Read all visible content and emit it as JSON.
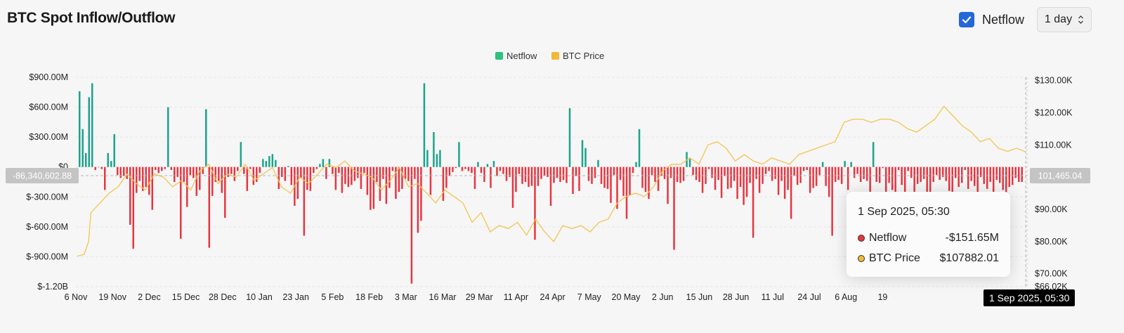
{
  "header": {
    "title": "BTC Spot Inflow/Outflow",
    "netflow_toggle_label": "Netflow",
    "interval": "1 day"
  },
  "colors": {
    "positive": "#1aa38b",
    "negative": "#e8343f",
    "price": "#f4c44e",
    "legend_netflow": "#2ec27e",
    "legend_price": "#f0b93a"
  },
  "icons": {
    "checkbox": "checkmark-icon",
    "select": "chevron-up-down-icon"
  },
  "tooltip": {
    "date": "1 Sep 2025, 05:30",
    "rows": [
      {
        "name": "Netflow",
        "value": "-$151.65M",
        "color": "#e8343f"
      },
      {
        "name": "BTC Price",
        "value": "$107882.01",
        "color": "#f0b93a"
      }
    ]
  },
  "chart_data": {
    "type": "bar",
    "title": "",
    "legend": {
      "position": "top-center",
      "entries": [
        "Netflow",
        "BTC Price"
      ]
    },
    "grid": true,
    "x_ticks": [
      "6 Nov",
      "19 Nov",
      "2 Dec",
      "15 Dec",
      "28 Dec",
      "10 Jan",
      "23 Jan",
      "5 Feb",
      "18 Feb",
      "3 Mar",
      "16 Mar",
      "29 Mar",
      "11 Apr",
      "24 Apr",
      "7 May",
      "20 May",
      "2 Jun",
      "15 Jun",
      "28 Jun",
      "11 Jul",
      "24 Jul",
      "6 Aug",
      "19"
    ],
    "y_left": {
      "ticks": [
        "$900.00M",
        "$600.00M",
        "$300.00M",
        "$0",
        "$-300.00M",
        "$-600.00M",
        "$-900.00M",
        "$-1.20B"
      ],
      "tick_values": [
        900,
        600,
        300,
        0,
        -300,
        -600,
        -900,
        -1200
      ],
      "min": -1200,
      "max": 900,
      "unit": "M USD"
    },
    "y_right": {
      "ticks": [
        "$130.00K",
        "$120.00K",
        "$110.00K",
        "$90.00K",
        "$80.00K",
        "$70.00K",
        "$66.02K"
      ],
      "tick_values": [
        130,
        120,
        110,
        90,
        80,
        70,
        66.02
      ],
      "min": 66.02,
      "max": 131,
      "unit": "K USD"
    },
    "crosshair": {
      "netflow_label": "-86,340,602.88",
      "netflow_value": -86.34,
      "price_label": "101,465.04",
      "price_value": 101.465,
      "x_label": "1 Sep 2025, 05:30"
    },
    "series": [
      {
        "name": "Netflow",
        "values": [
          760,
          380,
          140,
          700,
          840,
          -30,
          0,
          -20,
          -230,
          140,
          60,
          330,
          -80,
          -110,
          -90,
          -120,
          -580,
          -820,
          -260,
          -140,
          -240,
          -200,
          -280,
          -430,
          -30,
          -60,
          -40,
          -20,
          600,
          -30,
          -150,
          -100,
          -720,
          -150,
          -400,
          -80,
          -110,
          -290,
          -230,
          -70,
          580,
          -810,
          -290,
          -150,
          -140,
          -260,
          -510,
          -100,
          -70,
          -140,
          -40,
          250,
          -70,
          -240,
          -20,
          -180,
          -150,
          -60,
          80,
          60,
          110,
          130,
          70,
          -220,
          -100,
          -140,
          10,
          -180,
          -390,
          -320,
          -110,
          -690,
          -230,
          -240,
          -60,
          -20,
          30,
          80,
          -120,
          80,
          -70,
          -230,
          -60,
          -260,
          -170,
          -200,
          -180,
          -140,
          -110,
          -220,
          -60,
          -280,
          -430,
          -420,
          -150,
          -340,
          -120,
          -370,
          -210,
          -40,
          -320,
          -250,
          -220,
          -120,
          -140,
          -1170,
          -120,
          -660,
          -540,
          840,
          170,
          -280,
          350,
          130,
          170,
          -340,
          -210,
          -90,
          -50,
          -10,
          250,
          -40,
          -20,
          -40,
          -60,
          -220,
          50,
          -60,
          -150,
          30,
          -210,
          60,
          -90,
          -40,
          -70,
          -140,
          -100,
          -410,
          -250,
          -70,
          -170,
          -150,
          -200,
          -190,
          -730,
          -190,
          -120,
          -90,
          -100,
          -390,
          -160,
          -110,
          -150,
          -130,
          -160,
          590,
          -270,
          -90,
          -240,
          270,
          190,
          -140,
          -170,
          -110,
          70,
          -170,
          -210,
          -220,
          -360,
          -80,
          -420,
          -130,
          -290,
          -520,
          -280,
          -60,
          50,
          380,
          -210,
          -250,
          -320,
          -80,
          -150,
          -240,
          -90,
          -120,
          -370,
          -110,
          -830,
          -150,
          -160,
          -140,
          150,
          80,
          -80,
          -130,
          -150,
          -260,
          -170,
          -20,
          -110,
          -230,
          -130,
          -310,
          -90,
          -220,
          -210,
          -140,
          -320,
          -200,
          -380,
          -300,
          -160,
          -710,
          -120,
          -260,
          -170,
          -70,
          -40,
          -140,
          -120,
          -280,
          -140,
          -320,
          -230,
          -520,
          -90,
          -180,
          -160,
          -40,
          -30,
          -260,
          -210,
          -190,
          -80,
          50,
          -190,
          -300,
          -690,
          -150,
          -130,
          -170,
          60,
          -230,
          50,
          -110,
          -70,
          -150,
          -120,
          -140,
          -310,
          250,
          -150,
          -160,
          -10,
          -290,
          -160,
          -230,
          -280,
          -30,
          -180,
          -600,
          -40,
          -110,
          -370,
          -170,
          -150,
          -120,
          -450,
          -280,
          -150,
          -80,
          -130,
          -100,
          -140,
          -240,
          -310,
          -110,
          -200,
          -160,
          -30,
          -220,
          -140,
          -190,
          -250,
          -100,
          -170,
          -220,
          -150,
          -280,
          -130,
          -160,
          -230,
          -310,
          -200,
          -180,
          -110,
          -150,
          -150
        ],
        "note": "daily netflow in millions USD, estimated"
      },
      {
        "name": "BTC Price",
        "points": [
          [
            0,
            75.5
          ],
          [
            3,
            76
          ],
          [
            5,
            80
          ],
          [
            6,
            89
          ],
          [
            10,
            92
          ],
          [
            14,
            95
          ],
          [
            18,
            97
          ],
          [
            22,
            101
          ],
          [
            26,
            98
          ],
          [
            30,
            96
          ],
          [
            34,
            101
          ],
          [
            38,
            100
          ],
          [
            42,
            97
          ],
          [
            46,
            99
          ],
          [
            50,
            96
          ],
          [
            54,
            102
          ],
          [
            58,
            104
          ],
          [
            62,
            98
          ],
          [
            66,
            101
          ],
          [
            70,
            100
          ],
          [
            74,
            104
          ],
          [
            78,
            99
          ],
          [
            82,
            101
          ],
          [
            86,
            103
          ],
          [
            90,
            97
          ],
          [
            94,
            95
          ],
          [
            98,
            100
          ],
          [
            102,
            98
          ],
          [
            106,
            101
          ],
          [
            110,
            104
          ],
          [
            114,
            103
          ],
          [
            118,
            105
          ],
          [
            122,
            102
          ],
          [
            126,
            101
          ],
          [
            130,
            100
          ],
          [
            134,
            96
          ],
          [
            138,
            99
          ],
          [
            142,
            103
          ],
          [
            146,
            97
          ],
          [
            150,
            98
          ],
          [
            154,
            95
          ],
          [
            158,
            92
          ],
          [
            162,
            96
          ],
          [
            166,
            94
          ],
          [
            170,
            92
          ],
          [
            174,
            86
          ],
          [
            178,
            89
          ],
          [
            182,
            83
          ],
          [
            186,
            85
          ],
          [
            190,
            84
          ],
          [
            194,
            86
          ],
          [
            198,
            82
          ],
          [
            202,
            87
          ],
          [
            206,
            83
          ],
          [
            210,
            80
          ],
          [
            214,
            85
          ],
          [
            218,
            84
          ],
          [
            222,
            85
          ],
          [
            226,
            83
          ],
          [
            230,
            86
          ],
          [
            234,
            87
          ],
          [
            238,
            92
          ],
          [
            242,
            94
          ],
          [
            246,
            95
          ],
          [
            250,
            94
          ],
          [
            254,
            97
          ],
          [
            258,
            102
          ],
          [
            262,
            104
          ],
          [
            266,
            104
          ],
          [
            270,
            106
          ],
          [
            274,
            104
          ],
          [
            278,
            110
          ],
          [
            282,
            111
          ],
          [
            286,
            109
          ],
          [
            290,
            105
          ],
          [
            294,
            107
          ],
          [
            298,
            105
          ],
          [
            302,
            104
          ],
          [
            306,
            106
          ],
          [
            310,
            105
          ],
          [
            314,
            104
          ],
          [
            318,
            107
          ],
          [
            322,
            108
          ],
          [
            326,
            109
          ],
          [
            330,
            110
          ],
          [
            334,
            111
          ],
          [
            338,
            117
          ],
          [
            342,
            118
          ],
          [
            346,
            118
          ],
          [
            350,
            117
          ],
          [
            354,
            118
          ],
          [
            358,
            118
          ],
          [
            362,
            117
          ],
          [
            366,
            115
          ],
          [
            370,
            114
          ],
          [
            374,
            116
          ],
          [
            378,
            118
          ],
          [
            382,
            122
          ],
          [
            386,
            119
          ],
          [
            390,
            116
          ],
          [
            394,
            114
          ],
          [
            398,
            111
          ],
          [
            402,
            112
          ],
          [
            406,
            109
          ],
          [
            410,
            108
          ],
          [
            414,
            109
          ],
          [
            418,
            107.88
          ]
        ],
        "note": "BTC price in thousands USD on day index from 6 Nov, estimated"
      }
    ]
  }
}
